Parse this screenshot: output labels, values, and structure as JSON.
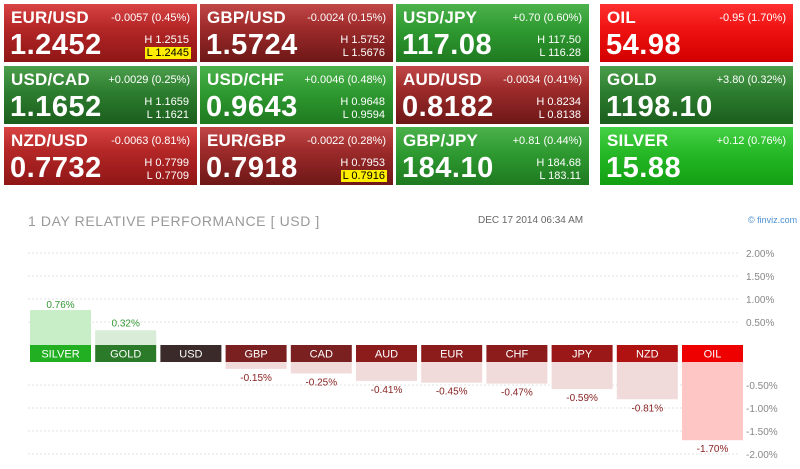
{
  "tiles": [
    {
      "pair": "EUR/USD",
      "change": "-0.0057 (0.45%)",
      "price": "1.2452",
      "high": "H 1.2515",
      "low": "L 1.2445",
      "low_marked": true,
      "style": "down"
    },
    {
      "pair": "GBP/USD",
      "change": "-0.0024 (0.15%)",
      "price": "1.5724",
      "high": "H 1.5752",
      "low": "L 1.5676",
      "low_marked": false,
      "style": "down2"
    },
    {
      "pair": "USD/JPY",
      "change": "+0.70 (0.60%)",
      "price": "117.08",
      "high": "H 117.50",
      "low": "L 116.28",
      "low_marked": false,
      "style": "up"
    },
    {
      "pair": "OIL",
      "change": "-0.95 (1.70%)",
      "price": "54.98",
      "style": "oil"
    },
    {
      "pair": "USD/CAD",
      "change": "+0.0029 (0.25%)",
      "price": "1.1652",
      "high": "H 1.1659",
      "low": "L 1.1621",
      "low_marked": false,
      "style": "up2"
    },
    {
      "pair": "USD/CHF",
      "change": "+0.0046 (0.48%)",
      "price": "0.9643",
      "high": "H 0.9648",
      "low": "L 0.9594",
      "low_marked": false,
      "style": "up"
    },
    {
      "pair": "AUD/USD",
      "change": "-0.0034 (0.41%)",
      "price": "0.8182",
      "high": "H 0.8234",
      "low": "L 0.8138",
      "low_marked": false,
      "style": "down2"
    },
    {
      "pair": "GOLD",
      "change": "+3.80 (0.32%)",
      "price": "1198.10",
      "style": "up2"
    },
    {
      "pair": "NZD/USD",
      "change": "-0.0063 (0.81%)",
      "price": "0.7732",
      "high": "H 0.7799",
      "low": "L 0.7709",
      "low_marked": false,
      "style": "down"
    },
    {
      "pair": "EUR/GBP",
      "change": "-0.0022 (0.28%)",
      "price": "0.7918",
      "high": "H 0.7953",
      "low": "L 0.7916",
      "low_marked": true,
      "style": "down2"
    },
    {
      "pair": "GBP/JPY",
      "change": "+0.81 (0.44%)",
      "price": "184.10",
      "high": "H 184.68",
      "low": "L 183.11",
      "low_marked": false,
      "style": "up"
    },
    {
      "pair": "SILVER",
      "change": "+0.12 (0.76%)",
      "price": "15.88",
      "style": "bright"
    }
  ],
  "performance": {
    "title": "1 DAY RELATIVE PERFORMANCE    [ USD ]",
    "date": "DEC 17 2014 06:34 AM",
    "source": "© finviz.com"
  },
  "chart_data": {
    "type": "bar",
    "categories": [
      "SILVER",
      "GOLD",
      "USD",
      "GBP",
      "CAD",
      "AUD",
      "EUR",
      "CHF",
      "JPY",
      "NZD",
      "OIL"
    ],
    "values": [
      0.76,
      0.32,
      0,
      -0.15,
      -0.25,
      -0.41,
      -0.45,
      -0.47,
      -0.59,
      -0.81,
      -1.7
    ],
    "value_labels": [
      "0.76%",
      "0.32%",
      "",
      "-0.15%",
      "-0.25%",
      "-0.41%",
      "-0.45%",
      "-0.47%",
      "-0.59%",
      "-0.81%",
      "-1.70%"
    ],
    "y_ticks": [
      "2.00%",
      "1.50%",
      "1.00%",
      "0.50%",
      "-0.50%",
      "-1.00%",
      "-1.50%",
      "-2.00%"
    ],
    "y_tick_values": [
      2.0,
      1.5,
      1.0,
      0.5,
      -0.5,
      -1.0,
      -1.5,
      -2.0
    ],
    "ylim": [
      -2.0,
      2.0
    ],
    "grid": true,
    "label_colors": {
      "SILVER": "#22b022",
      "GOLD": "#2a7a2a",
      "USD": "#3a2a2a",
      "GBP": "#7a2020",
      "CAD": "#7a2020",
      "AUD": "#8c1c1c",
      "EUR": "#8c1c1c",
      "CHF": "#8c1c1c",
      "JPY": "#9a1818",
      "NZD": "#b01212",
      "OIL": "#ee0000"
    },
    "bar_colors": {
      "positive_strong": "#c8eec8",
      "positive": "#d8ecd8",
      "negative": "#f1dada",
      "negative_strong": "#ffc6c6"
    },
    "value_label_colors": {
      "positive": "#339933",
      "negative": "#882222"
    }
  }
}
